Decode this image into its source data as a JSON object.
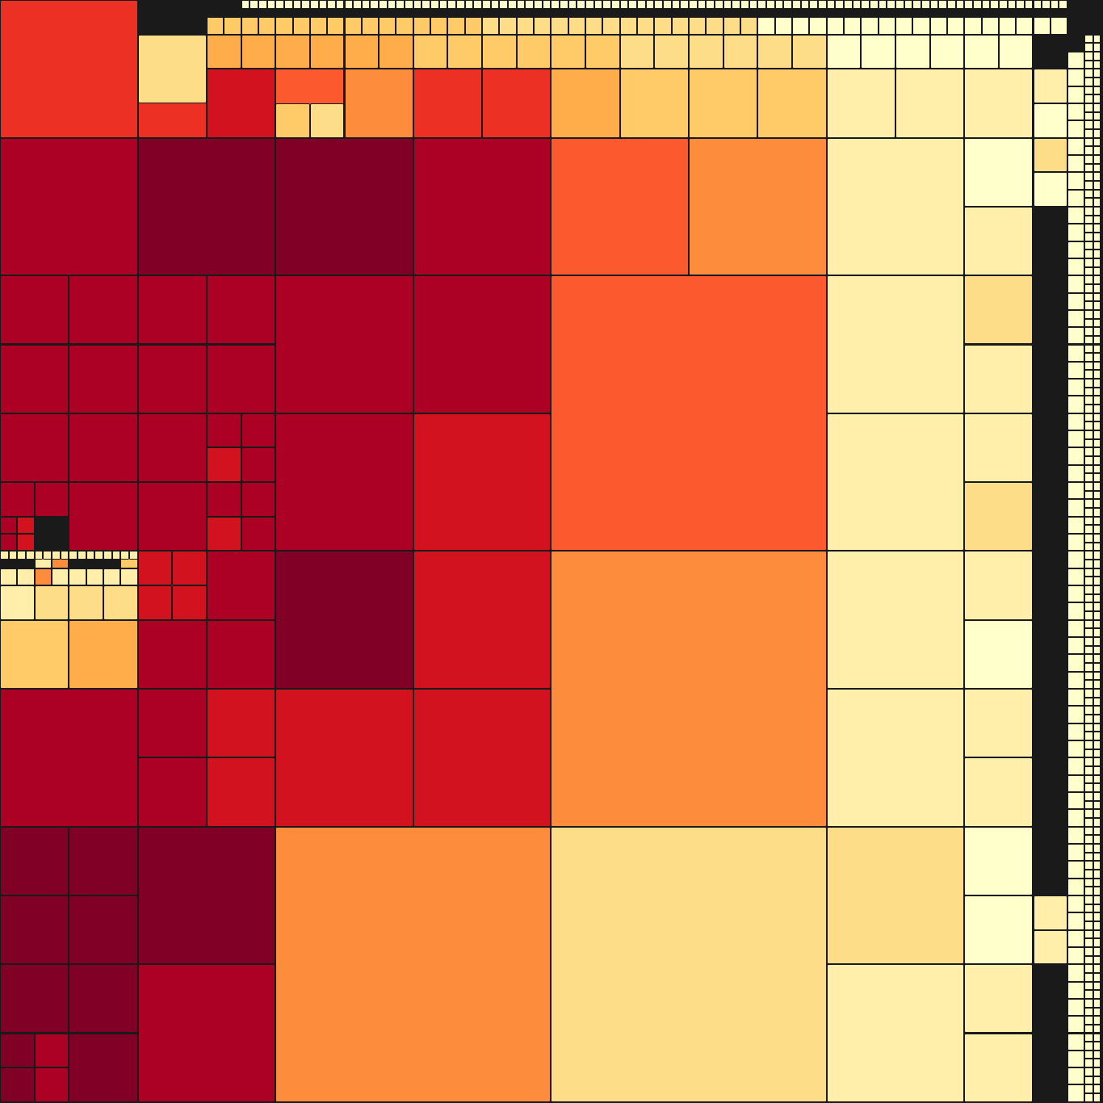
{
  "palette": {
    "r9": "#800026",
    "r8": "#ad0025",
    "r7": "#d3121f",
    "r6": "#ec3023",
    "o5": "#fc5a2e",
    "o4": "#fd8d3c",
    "o3": "#fead4a",
    "y2": "#fecb68",
    "y1": "#fedd88",
    "y0": "#ffefaa",
    "yy": "#ffffcc",
    "outline": "#1a1a1a"
  },
  "layout_note": ""
}
